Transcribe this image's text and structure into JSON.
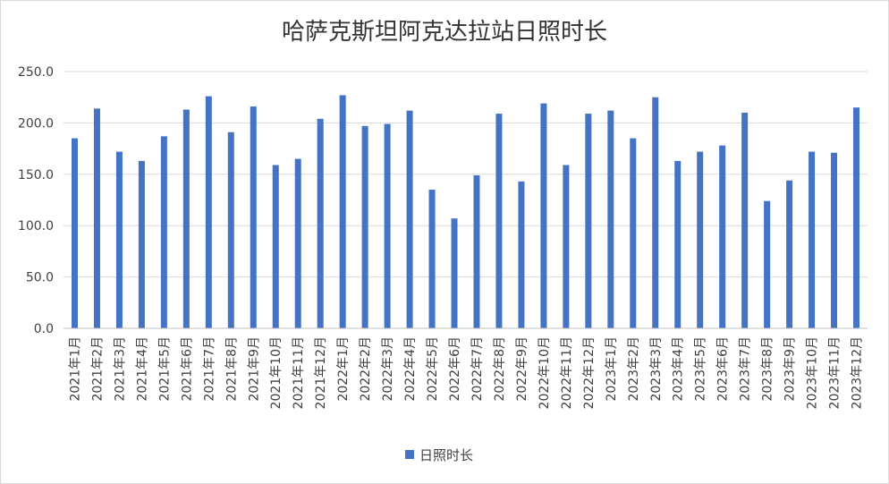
{
  "chart_data": {
    "type": "bar",
    "title": "哈萨克斯坦阿克达拉站日照时长",
    "xlabel": "",
    "ylabel": "",
    "ylim": [
      0,
      250
    ],
    "yticks": [
      "0.0",
      "50.0",
      "100.0",
      "150.0",
      "200.0",
      "250.0"
    ],
    "grid": true,
    "legend_position": "bottom",
    "categories": [
      "2021年1月",
      "2021年2月",
      "2021年3月",
      "2021年4月",
      "2021年5月",
      "2021年6月",
      "2021年7月",
      "2021年8月",
      "2021年9月",
      "2021年10月",
      "2021年11月",
      "2021年12月",
      "2022年1月",
      "2022年2月",
      "2022年3月",
      "2022年4月",
      "2022年5月",
      "2022年6月",
      "2022年7月",
      "2022年8月",
      "2022年9月",
      "2022年10月",
      "2022年11月",
      "2022年12月",
      "2023年1月",
      "2023年2月",
      "2023年3月",
      "2023年4月",
      "2023年5月",
      "2023年6月",
      "2023年7月",
      "2023年8月",
      "2023年9月",
      "2023年10月",
      "2023年11月",
      "2023年12月"
    ],
    "series": [
      {
        "name": "日照时长",
        "color": "#4472c4",
        "values": [
          185,
          214,
          172,
          163,
          187,
          213,
          226,
          191,
          216,
          159,
          165,
          204,
          227,
          197,
          199,
          212,
          135,
          107,
          149,
          209,
          143,
          219,
          159,
          209,
          212,
          185,
          225,
          163,
          172,
          178,
          210,
          124,
          144,
          172,
          171,
          215
        ]
      }
    ]
  }
}
